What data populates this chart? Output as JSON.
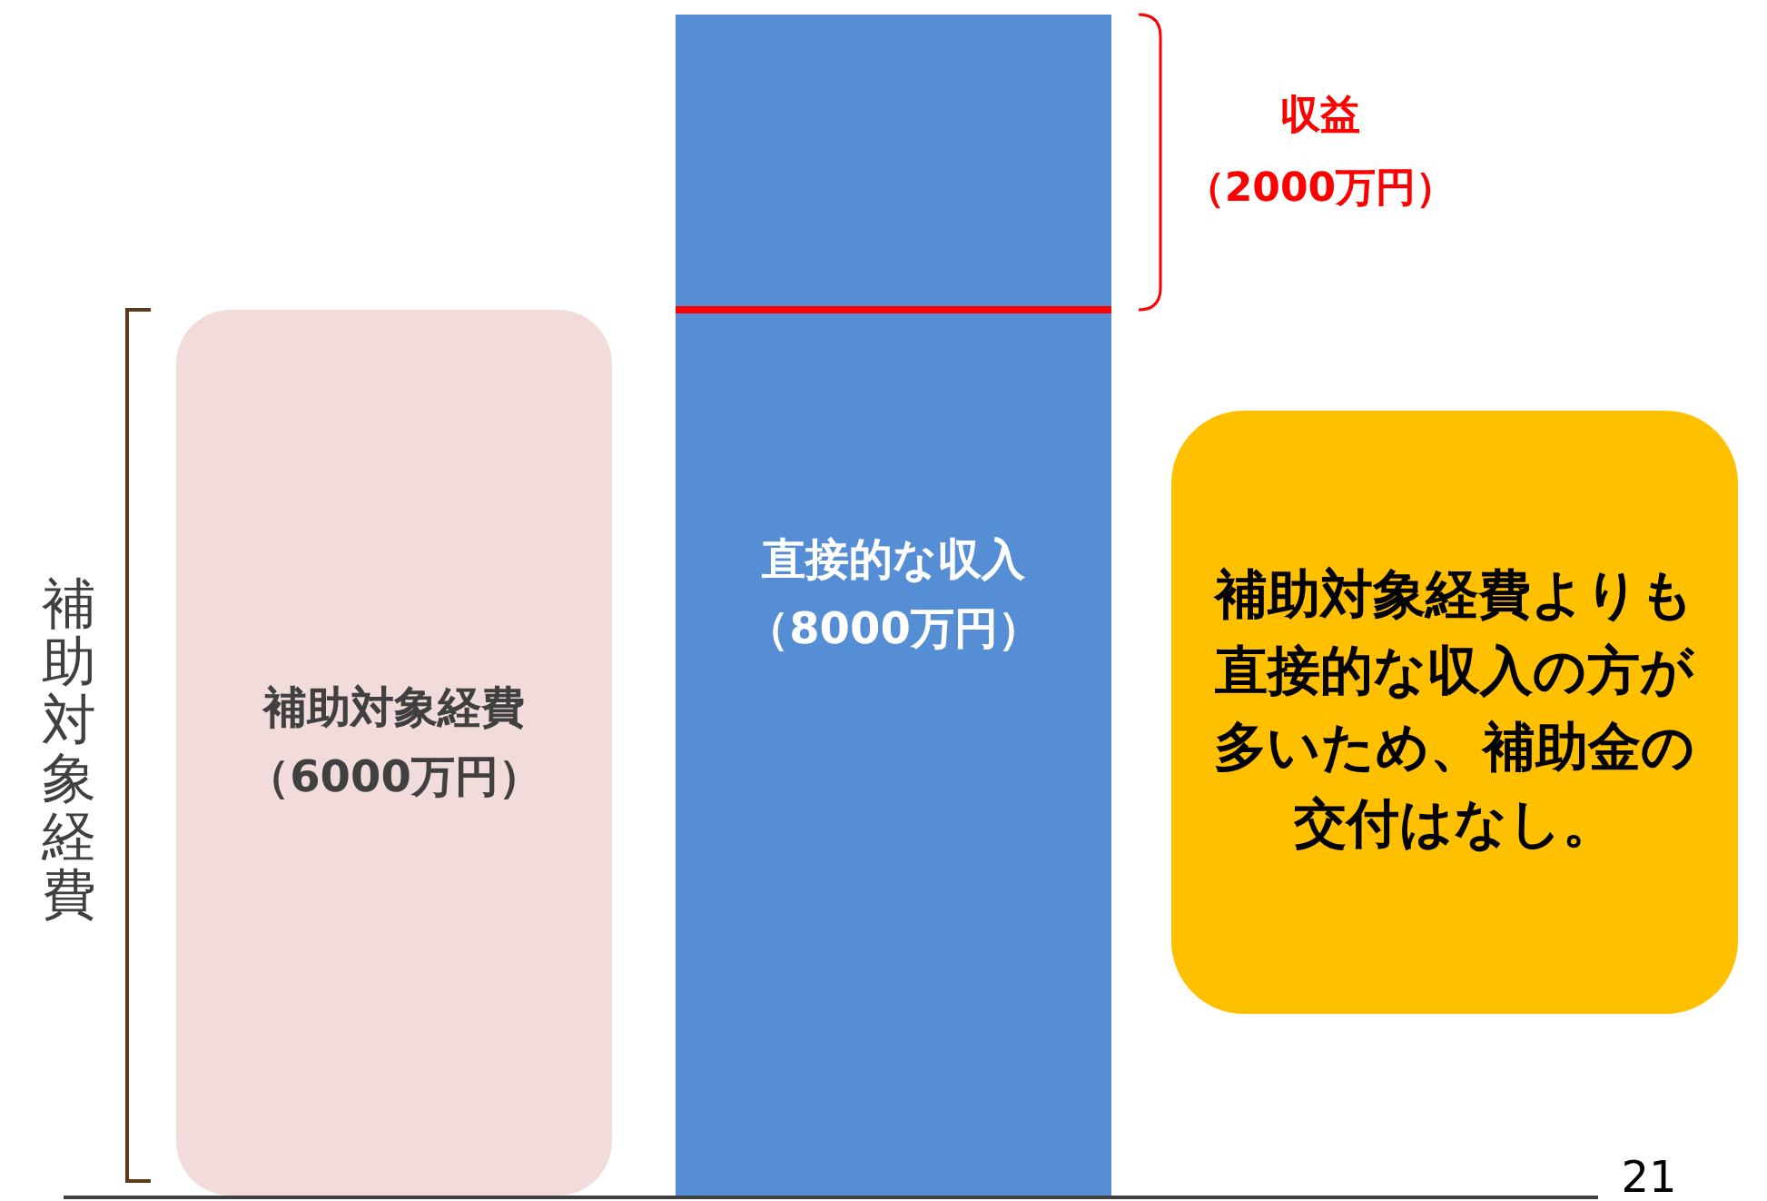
{
  "chart_data": {
    "type": "bar",
    "categories": [
      null,
      null
    ],
    "series": [
      {
        "values": [
          6000,
          8000
        ],
        "colors": [
          "#f2dcdb",
          "#558ed5"
        ],
        "value_labels": [
          "補助対象経費（6000万円）",
          "直接的な収入（8000万円）"
        ]
      }
    ],
    "ylabel": "補助対象経費",
    "ref_lines": [
      {
        "axis": "y",
        "value": 6000,
        "color": "#ff0000"
      }
    ],
    "annotations": [
      "収益（2000万円）",
      "補助対象経費よりも直接的な収入の方が多いため、補助金の交付はなし。",
      "21"
    ]
  }
}
